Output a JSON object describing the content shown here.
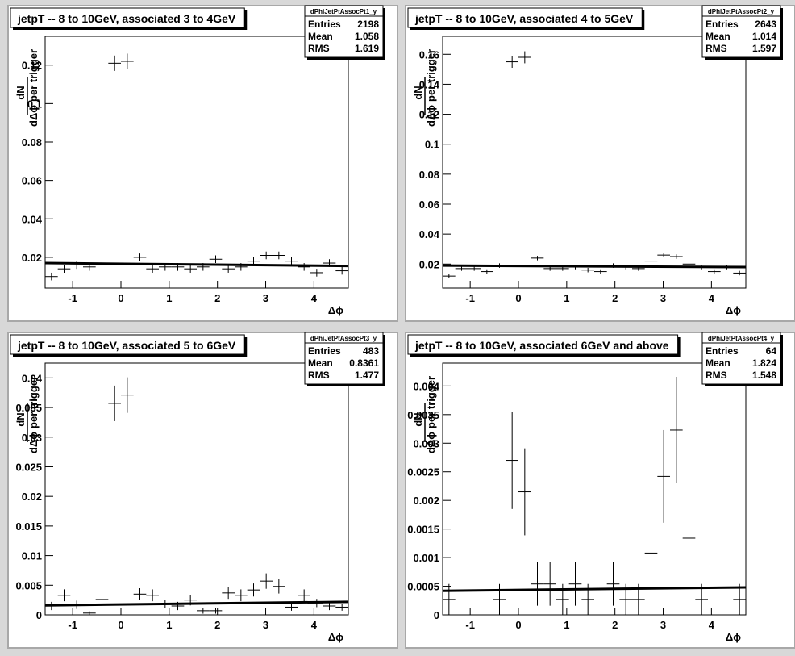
{
  "chart_data": [
    {
      "type": "histogram",
      "title": "jetpT -- 8 to 10GeV, associated 3 to 4GeV",
      "stats": {
        "name": "dPhiJetPtAssocPt1_y",
        "labels": [
          "Entries",
          "Mean",
          "RMS"
        ],
        "values": [
          2198,
          1.058,
          1.619
        ]
      },
      "xlabel": "Δϕ",
      "ylabel": {
        "numerator": "dN",
        "denominator": "dΔϕ",
        "suffix": "per trigger"
      },
      "bins": [
        -1.5708,
        -1.309,
        -1.0472,
        -0.7854,
        -0.5236,
        -0.2618,
        0,
        0.2618,
        0.5236,
        0.7854,
        1.0472,
        1.309,
        1.5708,
        1.8326,
        2.0944,
        2.3562,
        2.618,
        2.8798,
        3.1416,
        3.4034,
        3.6652,
        3.927,
        4.1888,
        4.4506,
        4.7124
      ],
      "values": [
        0.01,
        0.014,
        0.016,
        0.015,
        0.017,
        0.121,
        0.122,
        0.02,
        0.014,
        0.015,
        0.015,
        0.014,
        0.015,
        0.019,
        0.014,
        0.015,
        0.018,
        0.021,
        0.021,
        0.018,
        0.015,
        0.012,
        0.017,
        0.013
      ],
      "errors": [
        0.002,
        0.002,
        0.002,
        0.002,
        0.002,
        0.004,
        0.004,
        0.002,
        0.002,
        0.002,
        0.002,
        0.002,
        0.002,
        0.002,
        0.002,
        0.002,
        0.002,
        0.002,
        0.002,
        0.002,
        0.002,
        0.002,
        0.002,
        0.002
      ],
      "fit": {
        "x": [
          -1.5708,
          4.7124
        ],
        "y": [
          0.017,
          0.0155
        ]
      },
      "xlim": [
        -1.5708,
        4.7124
      ],
      "ylim": [
        0.004,
        0.135
      ],
      "xticks": [
        -1,
        0,
        1,
        2,
        3,
        4
      ],
      "yticks": [
        0.02,
        0.04,
        0.06,
        0.08,
        0.1,
        0.12
      ],
      "color": "#000000"
    },
    {
      "type": "histogram",
      "title": "jetpT -- 8 to 10GeV, associated 4 to 5GeV",
      "stats": {
        "name": "dPhiJetPtAssocPt2_y",
        "labels": [
          "Entries",
          "Mean",
          "RMS"
        ],
        "values": [
          2643,
          1.014,
          1.597
        ]
      },
      "xlabel": "Δϕ",
      "ylabel": {
        "numerator": "dN",
        "denominator": "dΔϕ",
        "suffix": "per trigger"
      },
      "bins": [
        -1.5708,
        -1.309,
        -1.0472,
        -0.7854,
        -0.5236,
        -0.2618,
        0,
        0.2618,
        0.5236,
        0.7854,
        1.0472,
        1.309,
        1.5708,
        1.8326,
        2.0944,
        2.3562,
        2.618,
        2.8798,
        3.1416,
        3.4034,
        3.6652,
        3.927,
        4.1888,
        4.4506,
        4.7124
      ],
      "values": [
        0.012,
        0.017,
        0.017,
        0.015,
        0.019,
        0.155,
        0.158,
        0.024,
        0.017,
        0.017,
        0.018,
        0.016,
        0.015,
        0.019,
        0.018,
        0.017,
        0.022,
        0.026,
        0.025,
        0.02,
        0.018,
        0.015,
        0.018,
        0.014
      ],
      "errors": [
        0.0015,
        0.0015,
        0.0015,
        0.0015,
        0.0015,
        0.004,
        0.004,
        0.0015,
        0.0015,
        0.0015,
        0.0015,
        0.0015,
        0.0015,
        0.0015,
        0.0015,
        0.0015,
        0.0015,
        0.0015,
        0.0015,
        0.0015,
        0.0015,
        0.0015,
        0.0015,
        0.0015
      ],
      "fit": {
        "x": [
          -1.5708,
          4.7124
        ],
        "y": [
          0.019,
          0.018
        ]
      },
      "xlim": [
        -1.5708,
        4.7124
      ],
      "ylim": [
        0.004,
        0.172
      ],
      "xticks": [
        -1,
        0,
        1,
        2,
        3,
        4
      ],
      "yticks": [
        0.02,
        0.04,
        0.06,
        0.08,
        0.1,
        0.12,
        0.14,
        0.16
      ],
      "color": "#000000"
    },
    {
      "type": "histogram",
      "title": "jetpT -- 8 to 10GeV, associated 5 to 6GeV",
      "stats": {
        "name": "dPhiJetPtAssocPt3_y",
        "labels": [
          "Entries",
          "Mean",
          "RMS"
        ],
        "values": [
          483,
          0.8361,
          1.477
        ]
      },
      "xlabel": "Δϕ",
      "ylabel": {
        "numerator": "dN",
        "denominator": "dΔϕ",
        "suffix": "per trigger"
      },
      "bins": [
        -1.5708,
        -1.309,
        -1.0472,
        -0.7854,
        -0.5236,
        -0.2618,
        0,
        0.2618,
        0.5236,
        0.7854,
        1.0472,
        1.309,
        1.5708,
        1.8326,
        2.0944,
        2.3562,
        2.618,
        2.8798,
        3.1416,
        3.4034,
        3.6652,
        3.927,
        4.1888,
        4.4506,
        4.7124
      ],
      "values": [
        0.0015,
        0.0033,
        0.0017,
        0.0003,
        0.0026,
        0.0357,
        0.0371,
        0.0035,
        0.0033,
        0.0018,
        0.0015,
        0.0025,
        0.0007,
        0.0007,
        0.0037,
        0.0033,
        0.0042,
        0.0057,
        0.0048,
        0.0013,
        0.0033,
        0.002,
        0.0015,
        0.0013
      ],
      "errors": [
        0.0007,
        0.001,
        0.0007,
        0.0003,
        0.0009,
        0.003,
        0.003,
        0.001,
        0.001,
        0.0007,
        0.0007,
        0.0009,
        0.0005,
        0.0005,
        0.001,
        0.001,
        0.0011,
        0.0013,
        0.0012,
        0.0006,
        0.001,
        0.0007,
        0.0007,
        0.0006
      ],
      "fit": {
        "x": [
          -1.5708,
          4.7124
        ],
        "y": [
          0.0016,
          0.0022
        ]
      },
      "xlim": [
        -1.5708,
        4.7124
      ],
      "ylim": [
        0,
        0.0425
      ],
      "xticks": [
        -1,
        0,
        1,
        2,
        3,
        4
      ],
      "yticks": [
        0,
        0.005,
        0.01,
        0.015,
        0.02,
        0.025,
        0.03,
        0.035,
        0.04
      ],
      "color": "#000000"
    },
    {
      "type": "histogram",
      "title": "jetpT -- 8 to 10GeV, associated 6GeV and above",
      "stats": {
        "name": "dPhiJetPtAssocPt4_y",
        "labels": [
          "Entries",
          "Mean",
          "RMS"
        ],
        "values": [
          64,
          1.824,
          1.548
        ]
      },
      "xlabel": "Δϕ",
      "ylabel": {
        "numerator": "dN",
        "denominator": "dΔϕ",
        "suffix": "per trigger"
      },
      "bins": [
        -1.5708,
        -1.309,
        -1.0472,
        -0.7854,
        -0.5236,
        -0.2618,
        0,
        0.2618,
        0.5236,
        0.7854,
        1.0472,
        1.309,
        1.5708,
        1.8326,
        2.0944,
        2.3562,
        2.618,
        2.8798,
        3.1416,
        3.4034,
        3.6652,
        3.927,
        4.1888,
        4.4506,
        4.7124
      ],
      "values": [
        0.00027,
        null,
        null,
        null,
        0.00027,
        0.0027,
        0.00215,
        0.00054,
        0.00054,
        0.00027,
        0.00054,
        0.00027,
        null,
        0.00054,
        0.00027,
        0.00027,
        0.00108,
        0.00242,
        0.00323,
        0.00134,
        0.00027,
        null,
        null,
        0.00027
      ],
      "errors": [
        0.00027,
        null,
        null,
        null,
        0.00027,
        0.00085,
        0.00076,
        0.00038,
        0.00038,
        0.00027,
        0.00038,
        0.00027,
        null,
        0.00038,
        0.00027,
        0.00027,
        0.00054,
        0.00081,
        0.00093,
        0.0006,
        0.00027,
        null,
        null,
        0.00027
      ],
      "fit": {
        "x": [
          -1.5708,
          4.7124
        ],
        "y": [
          0.00042,
          0.00048
        ]
      },
      "xlim": [
        -1.5708,
        4.7124
      ],
      "ylim": [
        0,
        0.0044
      ],
      "xticks": [
        -1,
        0,
        1,
        2,
        3,
        4
      ],
      "yticks": [
        0,
        0.0005,
        0.001,
        0.0015,
        0.002,
        0.0025,
        0.003,
        0.0035,
        0.004
      ],
      "color": "#000000"
    }
  ]
}
